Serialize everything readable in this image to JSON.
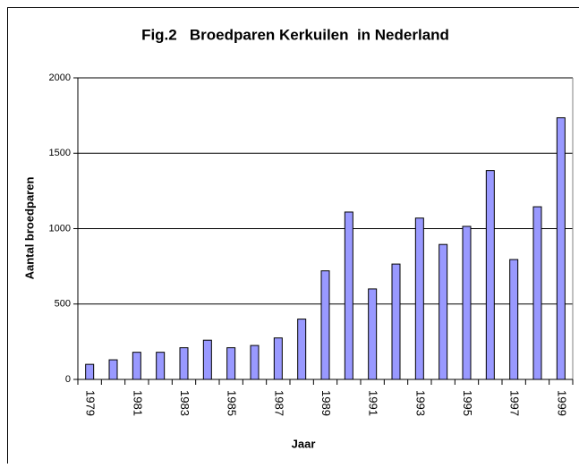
{
  "chart_data": {
    "type": "bar",
    "title": "Fig.2   Broedparen Kerkuilen  in Nederland",
    "x_label": "Jaar",
    "y_label": "Aantal broedparen",
    "categories": [
      "1979",
      null,
      "1981",
      null,
      "1983",
      null,
      "1985",
      null,
      "1987",
      null,
      "1989",
      null,
      "1991",
      null,
      "1993",
      null,
      "1995",
      null,
      "1997",
      null,
      "1999"
    ],
    "values": [
      100,
      130,
      180,
      180,
      210,
      260,
      210,
      225,
      275,
      400,
      720,
      1110,
      600,
      765,
      1070,
      895,
      1015,
      1385,
      795,
      1145,
      1735
    ],
    "color": "#9999ff",
    "ylim": [
      0,
      2000
    ],
    "yticks": [
      0,
      500,
      1000,
      1500,
      2000
    ],
    "grid": true
  }
}
